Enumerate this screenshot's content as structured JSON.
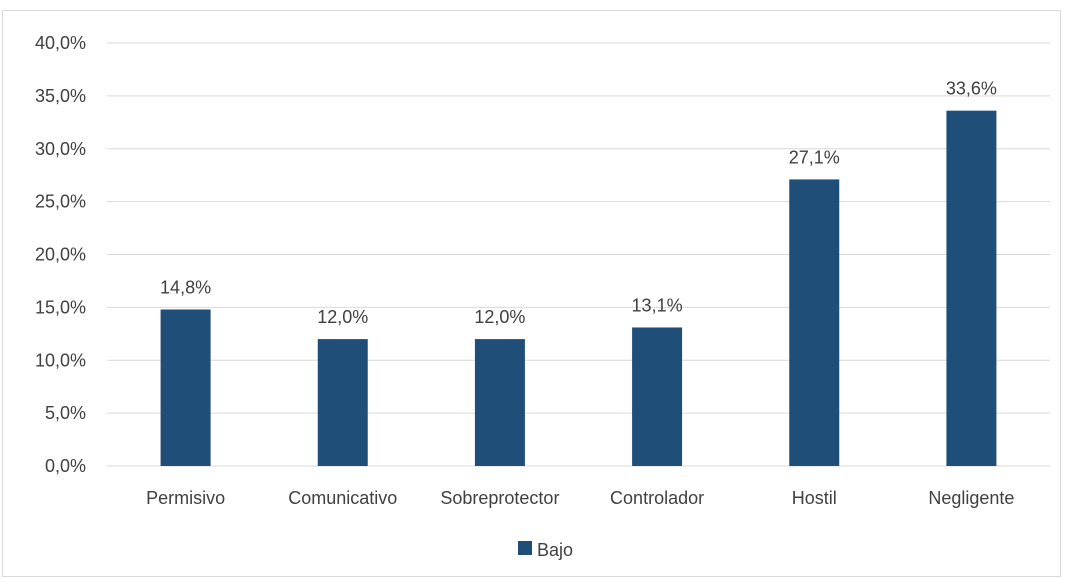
{
  "chart_data": {
    "type": "bar",
    "categories": [
      "Permisivo",
      "Comunicativo",
      "Sobreprotector",
      "Controlador",
      "Hostil",
      "Negligente"
    ],
    "series": [
      {
        "name": "Bajo",
        "values": [
          14.8,
          12.0,
          12.0,
          13.1,
          27.1,
          33.6
        ],
        "labels": [
          "14,8%",
          "12,0%",
          "12,0%",
          "13,1%",
          "27,1%",
          "33,6%"
        ],
        "color": "#1f4e79"
      }
    ],
    "ylim": [
      0,
      40
    ],
    "yticks": [
      0,
      5,
      10,
      15,
      20,
      25,
      30,
      35,
      40
    ],
    "ytick_labels": [
      "0,0%",
      "5,0%",
      "10,0%",
      "15,0%",
      "20,0%",
      "25,0%",
      "30,0%",
      "35,0%",
      "40,0%"
    ],
    "grid": true,
    "legend_position": "bottom",
    "title": "",
    "xlabel": "",
    "ylabel": ""
  }
}
